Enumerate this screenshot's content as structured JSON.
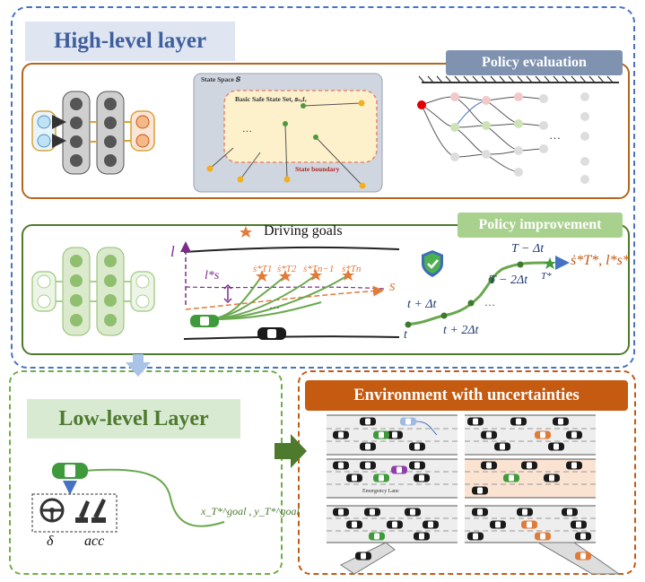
{
  "high_level": {
    "title": "High-level layer",
    "policy_evaluation": {
      "title": "Policy evaluation",
      "state_space_label": "State Space 𝑺",
      "basic_safe_set_label": "Basic Safe State Set, 𝑠ₛₐfₑ",
      "state_boundary_label": "State boundary",
      "ellipsis": "…"
    },
    "policy_improvement": {
      "title": "Policy improvement",
      "driving_goals_label": "Driving goals",
      "axis_l": "l",
      "axis_s": "s",
      "ls_star": "l*s",
      "goal_labels": [
        "ṡ*T1",
        "ṡ*T2",
        "ṡ*Tn−1",
        "ṡ*Tn"
      ],
      "time_labels": [
        "t",
        "t + Δt",
        "t + 2Δt",
        "T − 2Δt",
        "T − Δt",
        "T*"
      ],
      "result_label": "ṡ*T*, l*s*",
      "ellipsis": "…"
    }
  },
  "low_level": {
    "title": "Low-level Layer",
    "steer_symbol": "δ",
    "acc_symbol": "acc",
    "goal_label": "x_T*^goal , y_T*^goal"
  },
  "environment": {
    "title": "Environment with uncertainties",
    "emergency_lane_label": "Emergency Lane"
  },
  "colors": {
    "outer_dashed_blue": "#4a72c4",
    "high_level_title_bg": "#dfe6f2",
    "high_level_title_text": "#3f5f9e",
    "policy_eval_border": "#b5651d",
    "policy_eval_title_bg": "#7f92b0",
    "policy_improve_border": "#4e7a2e",
    "policy_improve_title_bg": "#a9d18e",
    "low_level_border": "#70ad47",
    "low_level_title_bg": "#d9ead3",
    "low_level_title_text": "#4e7a2e",
    "environment_border": "#c55a11",
    "environment_title_bg": "#c55a11"
  }
}
